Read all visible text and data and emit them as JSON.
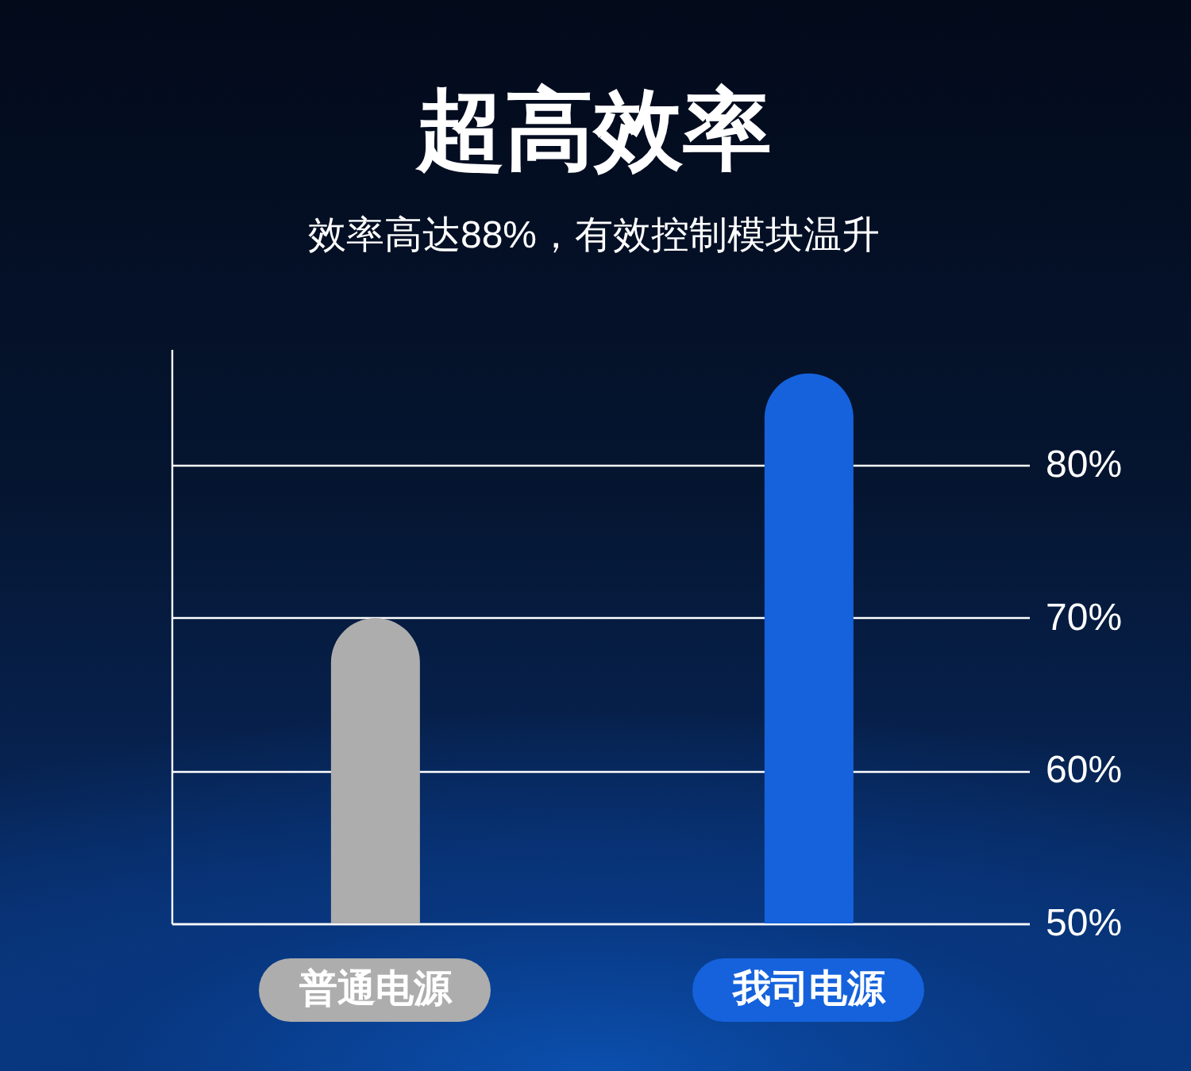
{
  "chart_data": {
    "type": "bar",
    "title": "超高效率",
    "subtitle": "效率高达88%，有效控制模块温升",
    "categories": [
      "普通电源",
      "我司电源"
    ],
    "values": [
      70,
      86
    ],
    "colors": [
      "#adadad",
      "#1562dc"
    ],
    "ylim": [
      50,
      87.6
    ],
    "yticks": [
      {
        "value": 50,
        "label": "50%"
      },
      {
        "value": 60,
        "label": "60%"
      },
      {
        "value": 70,
        "label": "70%"
      },
      {
        "value": 80,
        "label": "80%"
      }
    ],
    "grid": "y"
  }
}
